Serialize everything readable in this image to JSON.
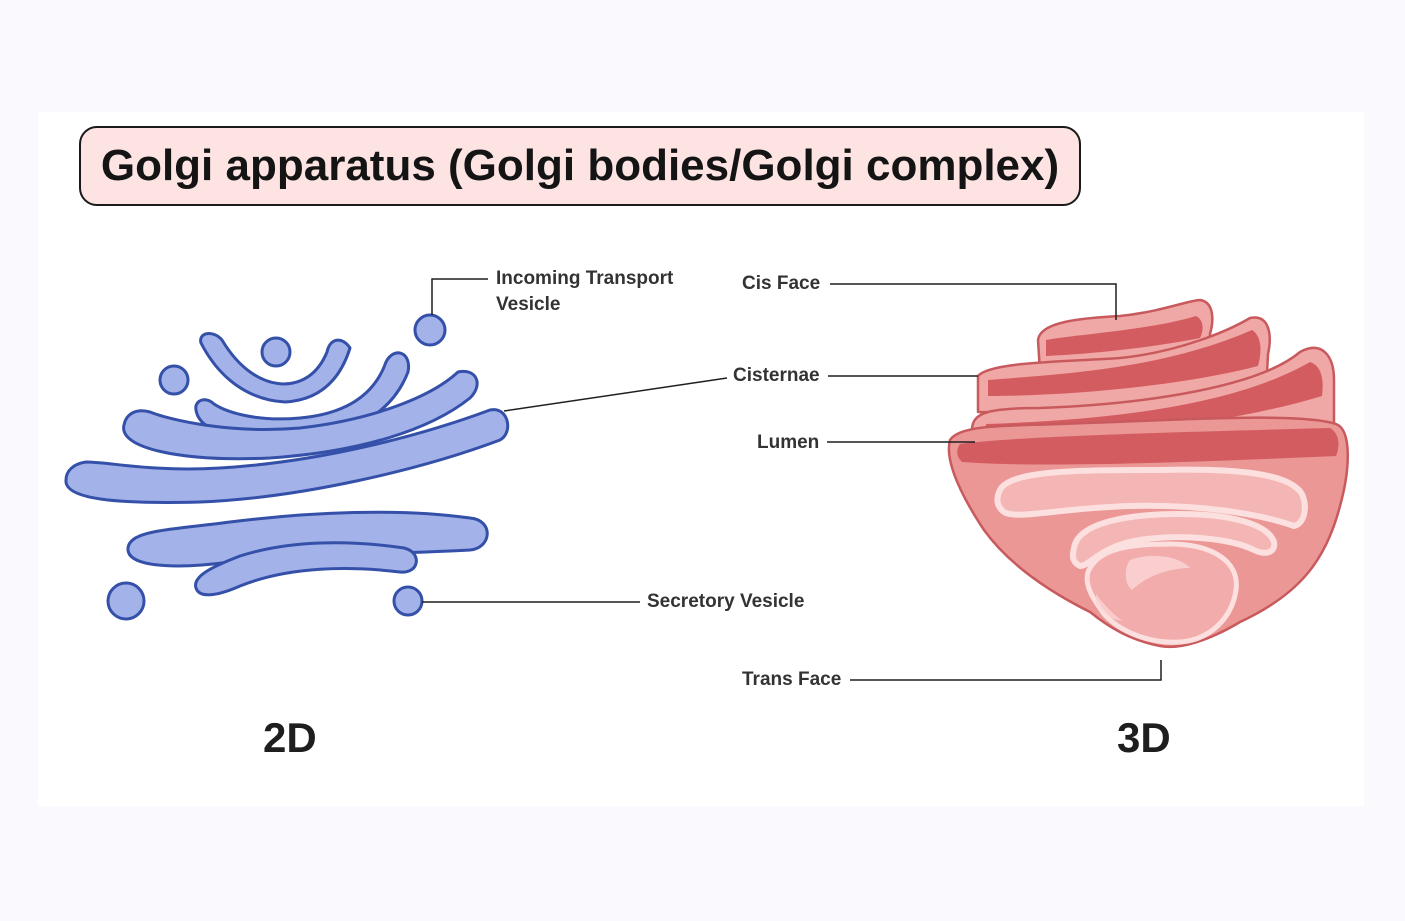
{
  "title": "Golgi apparatus (Golgi bodies/Golgi complex)",
  "labels_2d": {
    "incoming_line1": "Incoming Transport",
    "incoming_line2": "Vesicle",
    "cisternae": "Cisternae",
    "secretory": "Secretory Vesicle"
  },
  "labels_3d": {
    "cis_face": "Cis Face",
    "lumen": "Lumen",
    "trans_face": "Trans Face"
  },
  "view_titles": {
    "two_d": "2D",
    "three_d": "3D"
  },
  "colors": {
    "title_fill": "#fde3e2",
    "blue_fill": "#a4b2ea",
    "blue_stroke": "#3450a8",
    "pink_fill": "#eb9796",
    "pink_dark": "#d35c60",
    "pink_light": "#f6c4c2"
  }
}
